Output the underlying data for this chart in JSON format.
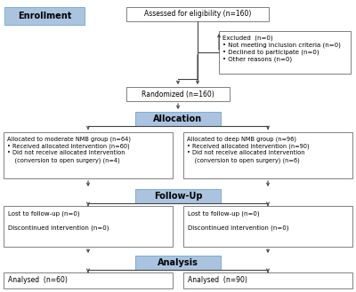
{
  "bg_color": "#ffffff",
  "box_border_color": "#808080",
  "blue_fill": "#aac4e0",
  "blue_border": "#7aaed4",
  "white_fill": "#ffffff",
  "enrollment_label": "Enrollment",
  "allocation_label": "Allocation",
  "followup_label": "Follow-Up",
  "analysis_label": "Analysis",
  "assessed_text": "Assessed for eligibility (n=160)",
  "excluded_text": "Excluded  (n=0)\n• Not meeting inclusion criteria (n=0)\n• Declined to participate (n=0)\n• Other reasons (n=0)",
  "randomized_text": "Randomized (n=160)",
  "left_alloc_text": "Allocated to moderate NMB group (n=64)\n• Received allocated intervention (n=60)\n• Did not receive allocated intervention\n    (conversion to open surgery) (n=4)",
  "right_alloc_text": "Allocated to deep NMB group (n=96)\n• Received allocated intervention (n=90)\n• Did not receive allocated intervention\n    (conversion to open surgery) (n=6)",
  "left_followup_text": "Lost to follow-up (n=0)\n\nDiscontinued intervention (n=0)",
  "right_followup_text": "Lost to follow-up (n=0)\n\nDiscontinued intervention (n=0)",
  "left_analysis_text": "Analysed  (n=60)",
  "right_analysis_text": "Analysed  (n=90)"
}
